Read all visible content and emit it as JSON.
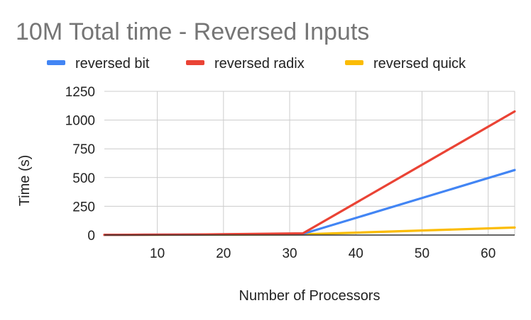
{
  "chart_data": {
    "type": "line",
    "title": "10M Total time - Reversed Inputs",
    "xlabel": "Number of Processors",
    "ylabel": "Time (s)",
    "xlim": [
      2,
      64
    ],
    "ylim": [
      0,
      1250
    ],
    "x_ticks": [
      10,
      20,
      30,
      40,
      50,
      60
    ],
    "y_ticks": [
      0,
      250,
      500,
      750,
      1000,
      1250
    ],
    "grid": true,
    "legend_position": "top",
    "x": [
      2,
      4,
      8,
      16,
      32,
      64
    ],
    "series": [
      {
        "name": "reversed bit",
        "color": "#4285F4",
        "values": [
          2,
          2,
          3,
          5,
          10,
          565
        ]
      },
      {
        "name": "reversed radix",
        "color": "#EA4335",
        "values": [
          2,
          2,
          3,
          5,
          15,
          1075
        ]
      },
      {
        "name": "reversed quick",
        "color": "#FBBC04",
        "values": [
          1,
          1,
          2,
          3,
          6,
          65
        ]
      }
    ]
  }
}
